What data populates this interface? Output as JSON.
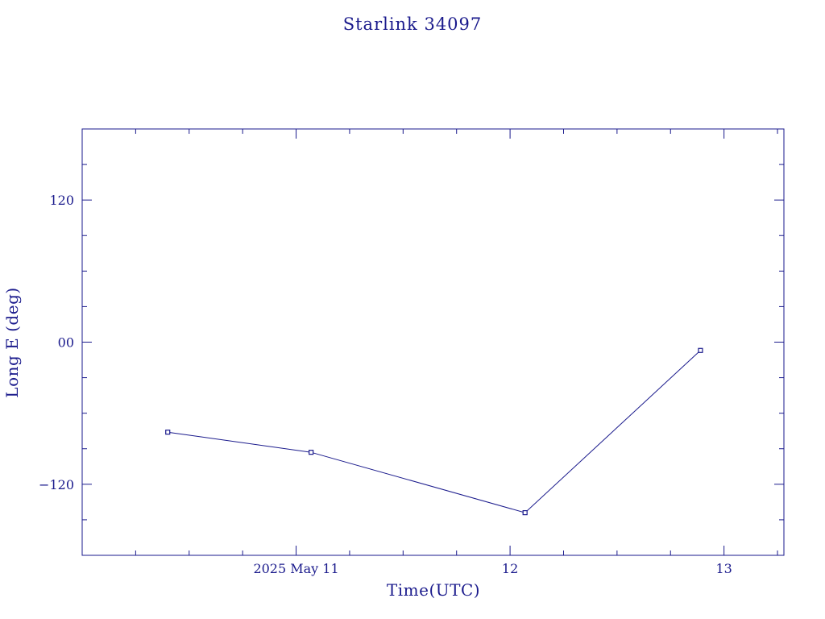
{
  "chart_data": {
    "type": "line",
    "title": "Starlink 34097",
    "xlabel": "Time(UTC)",
    "ylabel": "Long E (deg)",
    "x_unit": "days of May 2025 (UTC)",
    "xlim": [
      10.0,
      13.28
    ],
    "ylim": [
      -180,
      180
    ],
    "x_ticks": [
      {
        "value": 11,
        "label": "2025 May 11"
      },
      {
        "value": 12,
        "label": "12"
      },
      {
        "value": 13,
        "label": "13"
      }
    ],
    "x_minor_step": 0.25,
    "y_ticks": [
      {
        "value": 120,
        "label": "120"
      },
      {
        "value": 0,
        "label": "00"
      },
      {
        "value": -120,
        "label": "−120"
      }
    ],
    "y_minor_step": 30,
    "grid": false,
    "series": [
      {
        "x": [
          10.4,
          11.07,
          12.07,
          12.89
        ],
        "y": [
          -76,
          -93,
          -144,
          -7
        ]
      }
    ]
  },
  "colors": {
    "ink": "#1a1a8c",
    "background": "#ffffff"
  }
}
